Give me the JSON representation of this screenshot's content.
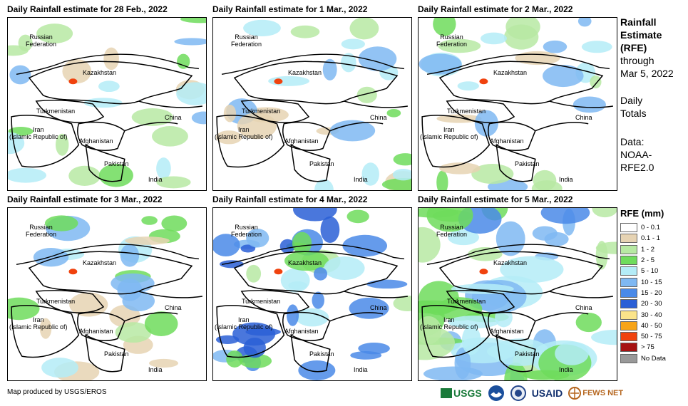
{
  "panels": [
    {
      "title": "Daily Rainfall estimate for 28 Feb., 2022",
      "coverage": "low"
    },
    {
      "title": "Daily Rainfall estimate for 1 Mar., 2022",
      "coverage": "low"
    },
    {
      "title": "Daily Rainfall estimate for 2 Mar., 2022",
      "coverage": "low"
    },
    {
      "title": "Daily Rainfall estimate for 3 Mar., 2022",
      "coverage": "low"
    },
    {
      "title": "Daily Rainfall estimate for 4 Mar., 2022",
      "coverage": "medium"
    },
    {
      "title": "Daily Rainfall estimate for 5 Mar., 2022",
      "coverage": "high"
    }
  ],
  "countries": {
    "russia": "Russian\nFederation",
    "kazakhstan": "Kazakhstan",
    "turkmenistan": "Turkmenistan",
    "china": "China",
    "iran": "Iran\n(Islamic Republic of)",
    "afghanistan": "Afghanistan",
    "pakistan": "Pakistan",
    "india": "India"
  },
  "sidebar": {
    "title": "Rainfall\nEstimate\n(RFE)",
    "through": "through\nMar 5, 2022",
    "daily": "Daily\nTotals",
    "data_source": "Data:\nNOAA-\nRFE2.0"
  },
  "legend": {
    "title": "RFE (mm)",
    "items": [
      {
        "label": "0 - 0.1",
        "color": "#ffffff"
      },
      {
        "label": "0.1 - 1",
        "color": "#e6d3b3"
      },
      {
        "label": "1 - 2",
        "color": "#b7e9a3"
      },
      {
        "label": "2 - 5",
        "color": "#6fdc5c"
      },
      {
        "label": "5 - 10",
        "color": "#b4ecf7"
      },
      {
        "label": "10 - 15",
        "color": "#7fb8f2"
      },
      {
        "label": "15 - 20",
        "color": "#4a8ae8"
      },
      {
        "label": "20 - 30",
        "color": "#2a5fd6"
      },
      {
        "label": "30 - 40",
        "color": "#fbe48a"
      },
      {
        "label": "40 - 50",
        "color": "#f7a418"
      },
      {
        "label": "50 - 75",
        "color": "#f0420e"
      },
      {
        "label": "> 75",
        "color": "#a61212"
      },
      {
        "label": "No Data",
        "color": "#999999"
      }
    ]
  },
  "credit": "Map produced by USGS/EROS",
  "logos": {
    "usgs": "USGS",
    "usaid": "USAID",
    "fewsnet": "FEWS NET"
  }
}
